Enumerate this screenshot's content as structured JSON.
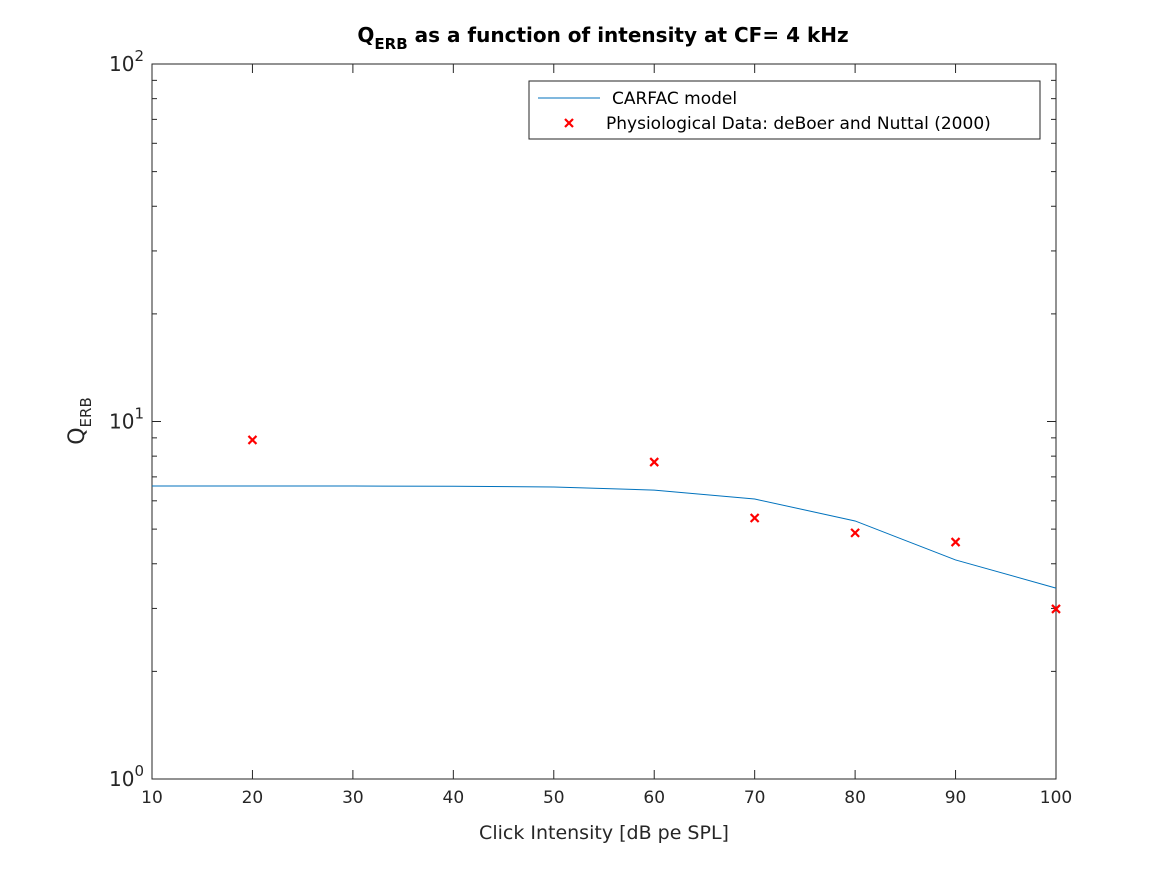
{
  "chart_data": {
    "type": "line",
    "title": "Q",
    "title_sub": "ERB",
    "title_rest": " as a function of intensity at CF= 4 kHz",
    "xlabel": "Click Intensity [dB pe SPL]",
    "ylabel": "Q",
    "ylabel_sub": "ERB",
    "xlim": [
      10,
      100
    ],
    "ylim": [
      1,
      100
    ],
    "yscale": "log",
    "grid": false,
    "legend_position": "top-right",
    "xticks": [
      "10",
      "20",
      "30",
      "40",
      "50",
      "60",
      "70",
      "80",
      "90",
      "100"
    ],
    "yticks": [
      {
        "base": "10",
        "exp": "0"
      },
      {
        "base": "10",
        "exp": "1"
      },
      {
        "base": "10",
        "exp": "2"
      }
    ],
    "series": [
      {
        "name": "CARFAC model",
        "style": "line",
        "color": "#0072BD",
        "x": [
          10,
          20,
          30,
          40,
          50,
          60,
          70,
          80,
          90,
          100
        ],
        "y": [
          6.6,
          6.6,
          6.6,
          6.59,
          6.56,
          6.43,
          6.07,
          5.27,
          4.1,
          3.42
        ]
      },
      {
        "name": "Physiological Data: deBoer and Nuttal (2000)",
        "style": "marker-x",
        "color": "#FF0000",
        "x": [
          20,
          60,
          70,
          80,
          90,
          100
        ],
        "y": [
          8.88,
          7.7,
          5.37,
          4.88,
          4.6,
          2.99
        ]
      }
    ]
  }
}
